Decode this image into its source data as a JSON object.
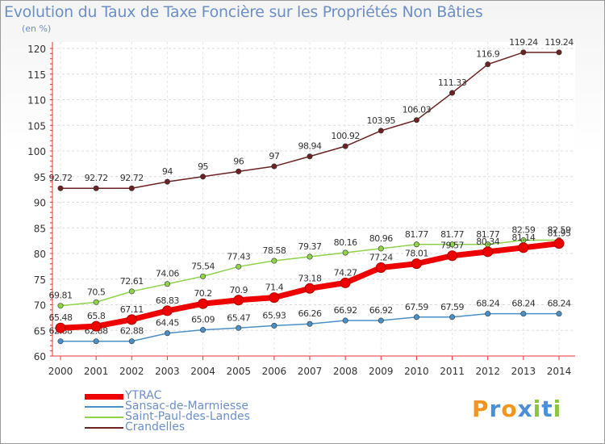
{
  "title": "Evolution du Taux de Taxe Foncière sur les Propriétés Non Bâties",
  "subtitle": "(en %)",
  "logo": {
    "text": "Proxiti",
    "colors": [
      "#f29520",
      "#4a90d9",
      "#f29520",
      "#4a90d9",
      "#8cc63f",
      "#4a90d9",
      "#8cc63f"
    ]
  },
  "chart_data": {
    "type": "line",
    "x": [
      "2000",
      "2001",
      "2002",
      "2003",
      "2004",
      "2005",
      "2006",
      "2007",
      "2008",
      "2009",
      "2010",
      "2011",
      "2012",
      "2013",
      "2014"
    ],
    "ylim": [
      60,
      120
    ],
    "yticks": [
      60,
      65,
      70,
      75,
      80,
      85,
      90,
      95,
      100,
      105,
      110,
      115,
      120
    ],
    "grid": true,
    "legend_position": "bottom-left",
    "series": [
      {
        "name": "Crandelles",
        "color": "#6b2222",
        "labels": [
          "92.72",
          "92.72",
          "92.72",
          "94",
          "95",
          "96",
          "97",
          "98.94",
          "100.92",
          "103.95",
          "106.03",
          "111.33",
          "116.9",
          "119.24",
          "119.24"
        ],
        "values": [
          92.72,
          92.72,
          92.72,
          94,
          95,
          96,
          97,
          98.94,
          100.92,
          103.95,
          106.03,
          111.33,
          116.9,
          119.24,
          119.24
        ]
      },
      {
        "name": "Saint-Paul-des-Landes",
        "color": "#8ed34a",
        "labels": [
          "69.81",
          "70.5",
          "72.61",
          "74.06",
          "75.54",
          "77.43",
          "78.58",
          "79.37",
          "80.16",
          "80.96",
          "81.77",
          "81.77",
          "81.77",
          "82.59",
          "82.59"
        ],
        "values": [
          69.81,
          70.5,
          72.61,
          74.06,
          75.54,
          77.43,
          78.58,
          79.37,
          80.16,
          80.96,
          81.77,
          81.77,
          81.77,
          82.59,
          82.59
        ]
      },
      {
        "name": "Sansac-de-Marmiesse",
        "color": "#4a90c8",
        "labels": [
          "62.88",
          "62.88",
          "62.88",
          "64.45",
          "65.09",
          "65.47",
          "65.93",
          "66.26",
          "66.92",
          "66.92",
          "67.59",
          "67.59",
          "68.24",
          "68.24",
          "68.24"
        ],
        "values": [
          62.88,
          62.88,
          62.88,
          64.45,
          65.09,
          65.47,
          65.93,
          66.26,
          66.92,
          66.92,
          67.59,
          67.59,
          68.24,
          68.24,
          68.24
        ]
      },
      {
        "name": "YTRAC",
        "color": "#ee0000",
        "labels": [
          "65.48",
          "65.8",
          "67.11",
          "68.83",
          "70.2",
          "70.9",
          "71.4",
          "73.18",
          "74.27",
          "77.24",
          "78.01",
          "79.57",
          "80.34",
          "81.14",
          "81.95"
        ],
        "values": [
          65.48,
          65.8,
          67.11,
          68.83,
          70.2,
          70.9,
          71.4,
          73.18,
          74.27,
          77.24,
          78.01,
          79.57,
          80.34,
          81.14,
          81.95
        ]
      }
    ]
  },
  "legend": [
    {
      "name": "YTRAC",
      "color": "#ee0000"
    },
    {
      "name": "Sansac-de-Marmiesse",
      "color": "#4a90c8"
    },
    {
      "name": "Saint-Paul-des-Landes",
      "color": "#8ed34a"
    },
    {
      "name": "Crandelles",
      "color": "#6b2222"
    }
  ]
}
